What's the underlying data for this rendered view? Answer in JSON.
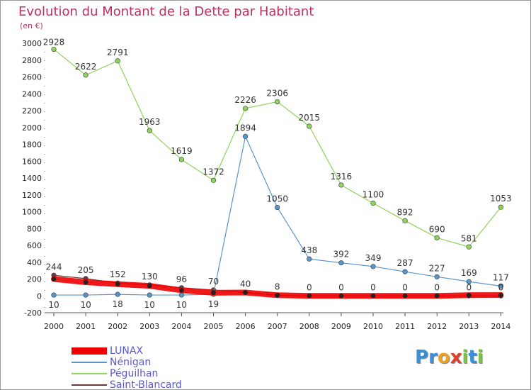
{
  "title": "Evolution du Montant de la Dette par Habitant",
  "subtitle": "(en €)",
  "logo": {
    "letters": [
      "P",
      "r",
      "o",
      "x",
      "i",
      "t",
      "i"
    ],
    "colors": [
      "#3a8fd8",
      "#3a8fd8",
      "#f0a020",
      "#e0402a",
      "#7bc043",
      "#3a8fd8",
      "#7bc043"
    ]
  },
  "chart_data": {
    "type": "line",
    "title": "Evolution du Montant de la Dette par Habitant",
    "subtitle": "(en €)",
    "x": [
      "2000",
      "2001",
      "2002",
      "2003",
      "2004",
      "2005",
      "2006",
      "2007",
      "2008",
      "2009",
      "2010",
      "2011",
      "2012",
      "2013",
      "2014"
    ],
    "ylim": [
      -200,
      3000
    ],
    "yticks": [
      -200,
      0,
      200,
      400,
      600,
      800,
      1000,
      1200,
      1400,
      1600,
      1800,
      2000,
      2200,
      2400,
      2600,
      2800,
      3000
    ],
    "grid": false,
    "legend_position": "bottom-left",
    "series": [
      {
        "name": "LUNAX",
        "color": "#ee0000",
        "values": [
          200,
          162,
          139,
          119,
          66,
          37,
          40,
          8,
          0,
          0,
          0,
          0,
          0,
          8,
          10
        ],
        "labels": false
      },
      {
        "name": "Nénigan",
        "color": "#5a95c8",
        "values": [
          10,
          10,
          18,
          10,
          10,
          19,
          1894,
          1050,
          438,
          392,
          349,
          287,
          227,
          169,
          117
        ],
        "labels": true
      },
      {
        "name": "Péguilhan",
        "color": "#8fd35a",
        "values": [
          2928,
          2622,
          2791,
          1963,
          1619,
          1372,
          2226,
          2306,
          2015,
          1316,
          1100,
          892,
          690,
          581,
          1053
        ],
        "labels": true
      },
      {
        "name": "Saint-Blancard",
        "color": "#6a3a3a",
        "values": [
          244,
          205,
          152,
          130,
          96,
          70,
          40,
          8,
          0,
          0,
          0,
          0,
          0,
          0,
          0
        ],
        "labels": true
      }
    ]
  }
}
